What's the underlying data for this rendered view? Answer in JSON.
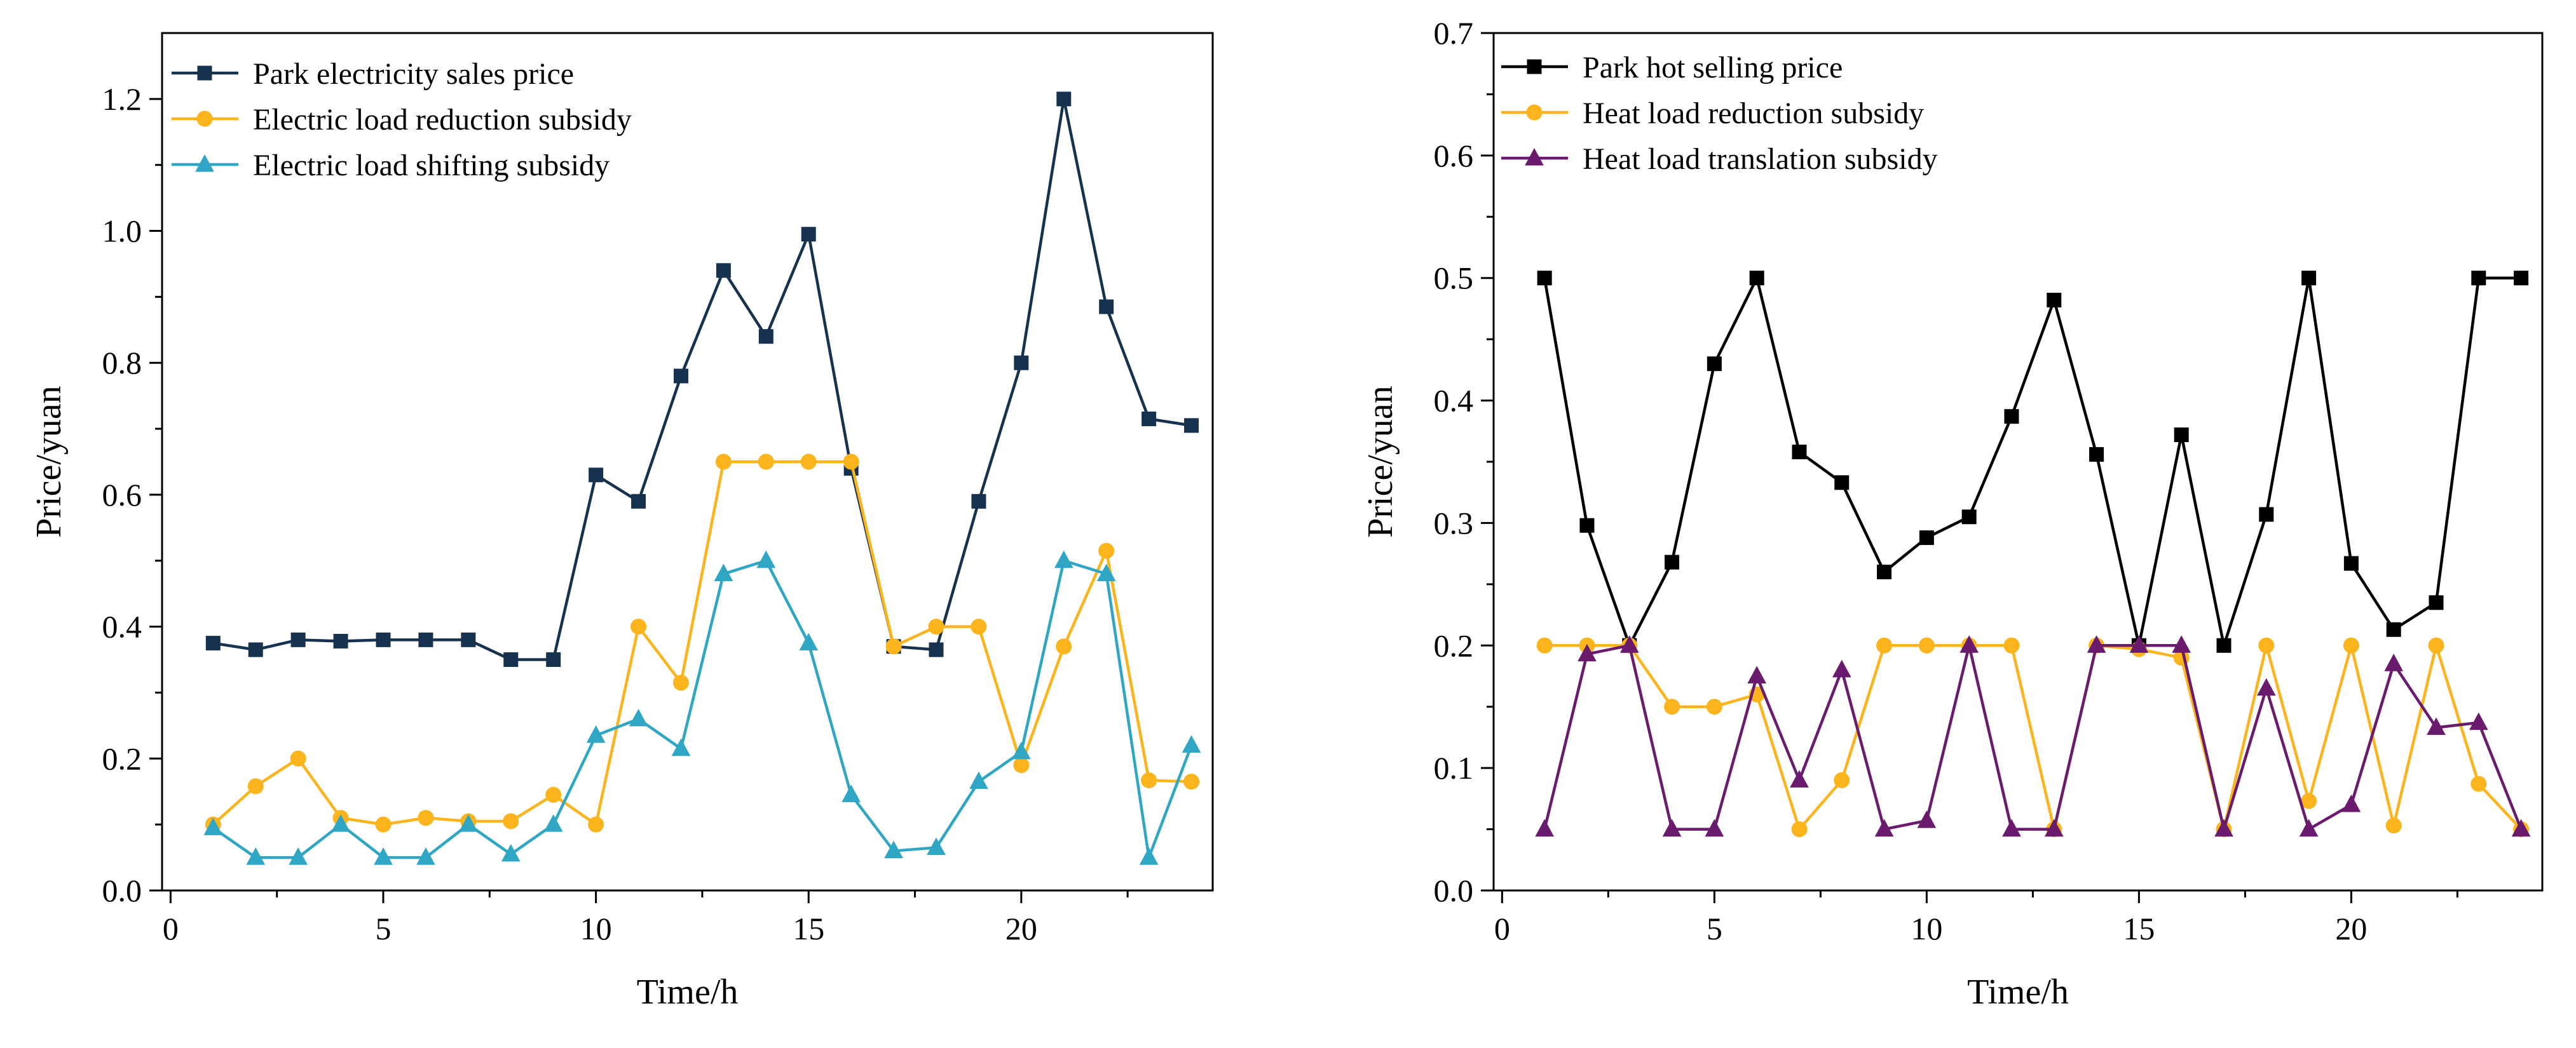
{
  "chart_data": [
    {
      "type": "line",
      "xlabel": "Time/h",
      "ylabel": "Price/yuan",
      "xlim": [
        -0.2,
        24.5
      ],
      "ylim": [
        0,
        1.3
      ],
      "xticks": [
        0,
        5,
        10,
        15,
        20
      ],
      "yticks": [
        0.0,
        0.2,
        0.4,
        0.6,
        0.8,
        1.0,
        1.2
      ],
      "ytick_labels": [
        "0.0",
        "0.2",
        "0.4",
        "0.6",
        "0.8",
        "1.0",
        "1.2"
      ],
      "x": [
        1,
        2,
        3,
        4,
        5,
        6,
        7,
        8,
        9,
        10,
        11,
        12,
        13,
        14,
        15,
        16,
        17,
        18,
        19,
        20,
        21,
        22,
        23,
        24
      ],
      "legend_position": "top-left",
      "series": [
        {
          "name": "Park electricity sales price",
          "color": "#16324f",
          "marker": "square",
          "values": [
            0.375,
            0.365,
            0.38,
            0.378,
            0.38,
            0.38,
            0.38,
            0.35,
            0.35,
            0.63,
            0.59,
            0.78,
            0.94,
            0.84,
            0.995,
            0.64,
            0.37,
            0.365,
            0.59,
            0.8,
            1.2,
            0.885,
            0.715,
            0.705
          ]
        },
        {
          "name": "Electric load reduction subsidy",
          "color": "#fbb41b",
          "marker": "circle",
          "values": [
            0.1,
            0.158,
            0.2,
            0.11,
            0.1,
            0.11,
            0.105,
            0.105,
            0.145,
            0.1,
            0.4,
            0.315,
            0.65,
            0.65,
            0.65,
            0.65,
            0.37,
            0.4,
            0.4,
            0.19,
            0.37,
            0.515,
            0.167,
            0.165
          ]
        },
        {
          "name": "Electric load shifting subsidy",
          "color": "#2ea6c4",
          "marker": "triangle",
          "values": [
            0.095,
            0.05,
            0.05,
            0.1,
            0.05,
            0.05,
            0.1,
            0.055,
            0.1,
            0.235,
            0.26,
            0.215,
            0.48,
            0.5,
            0.375,
            0.145,
            0.06,
            0.065,
            0.165,
            0.21,
            0.5,
            0.48,
            0.05,
            0.22
          ]
        }
      ]
    },
    {
      "type": "line",
      "xlabel": "Time/h",
      "ylabel": "Price/yuan",
      "xlim": [
        -0.2,
        24.5
      ],
      "ylim": [
        0,
        0.7
      ],
      "xticks": [
        0,
        5,
        10,
        15,
        20
      ],
      "yticks": [
        0.0,
        0.1,
        0.2,
        0.3,
        0.4,
        0.5,
        0.6,
        0.7
      ],
      "ytick_labels": [
        "0.0",
        "0.1",
        "0.2",
        "0.3",
        "0.4",
        "0.5",
        "0.6",
        "0.7"
      ],
      "x": [
        1,
        2,
        3,
        4,
        5,
        6,
        7,
        8,
        9,
        10,
        11,
        12,
        13,
        14,
        15,
        16,
        17,
        18,
        19,
        20,
        21,
        22,
        23,
        24
      ],
      "legend_position": "top-left",
      "series": [
        {
          "name": "Park hot selling price",
          "color": "#000000",
          "marker": "square",
          "values": [
            0.5,
            0.298,
            0.2,
            0.268,
            0.43,
            0.5,
            0.358,
            0.333,
            0.26,
            0.288,
            0.305,
            0.387,
            0.482,
            0.356,
            0.2,
            0.372,
            0.2,
            0.307,
            0.5,
            0.267,
            0.213,
            0.235,
            0.5,
            0.5
          ]
        },
        {
          "name": "Heat load reduction subsidy",
          "color": "#fbb41b",
          "marker": "circle",
          "values": [
            0.2,
            0.2,
            0.2,
            0.15,
            0.15,
            0.16,
            0.05,
            0.09,
            0.2,
            0.2,
            0.2,
            0.2,
            0.05,
            0.2,
            0.197,
            0.19,
            0.05,
            0.2,
            0.073,
            0.2,
            0.053,
            0.2,
            0.087,
            0.05
          ]
        },
        {
          "name": "Heat load translation subsidy",
          "color": "#6a1b6e",
          "marker": "triangle",
          "values": [
            0.05,
            0.193,
            0.2,
            0.05,
            0.05,
            0.175,
            0.09,
            0.18,
            0.05,
            0.057,
            0.2,
            0.05,
            0.05,
            0.2,
            0.2,
            0.2,
            0.05,
            0.165,
            0.05,
            0.07,
            0.185,
            0.133,
            0.137,
            0.05
          ]
        }
      ]
    }
  ]
}
